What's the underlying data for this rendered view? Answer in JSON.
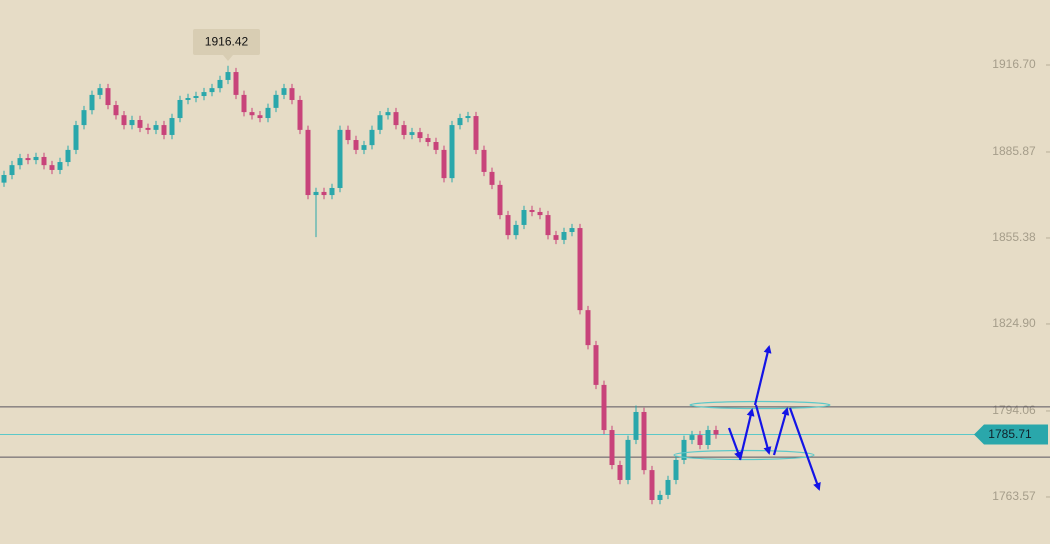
{
  "chart_data": {
    "type": "candlestick",
    "ylim": [
      1746.9,
      1939.74
    ],
    "yticks": [
      {
        "value": 1916.7,
        "label": "1916.70"
      },
      1885.87,
      1855.38,
      {
        "value": 1824.9,
        "label": "1824.90"
      },
      1794.06,
      1763.57
    ],
    "open": [
      1875.0,
      1877.7,
      1881.2,
      1883.7,
      1883.0,
      1884.1,
      1881.2,
      1879.5,
      1882.3,
      1886.6,
      1895.4,
      1900.7,
      1906.1,
      1908.5,
      1902.5,
      1898.9,
      1895.4,
      1897.2,
      1894.4,
      1893.7,
      1895.4,
      1891.9,
      1897.9,
      1904.3,
      1905.0,
      1905.7,
      1907.1,
      1908.5,
      1911.4,
      1914.2,
      1906.1,
      1900.0,
      1898.9,
      1897.9,
      1901.5,
      1906.1,
      1908.5,
      1904.3,
      1893.7,
      1870.6,
      1871.7,
      1870.6,
      1873.1,
      1893.7,
      1890.1,
      1886.6,
      1888.3,
      1893.7,
      1898.9,
      1900.0,
      1895.4,
      1891.9,
      1892.9,
      1890.8,
      1889.4,
      1886.6,
      1876.6,
      1895.4,
      1897.9,
      1898.6,
      1886.6,
      1878.8,
      1874.2,
      1863.5,
      1856.4,
      1860.0,
      1865.3,
      1864.6,
      1863.5,
      1856.4,
      1854.7,
      1857.5,
      1858.9,
      1829.8,
      1817.4,
      1803.3,
      1787.3,
      1774.9,
      1769.6,
      1783.8,
      1793.7,
      1773.1,
      1762.5,
      1764.3,
      1769.6,
      1776.7,
      1783.8,
      1785.5,
      1782.0,
      1787.3
    ],
    "high": [
      1879.2,
      1882.7,
      1885.2,
      1885.2,
      1885.6,
      1885.6,
      1882.7,
      1883.8,
      1888.1,
      1896.9,
      1902.2,
      1907.6,
      1910.0,
      1910.0,
      1904.0,
      1900.4,
      1898.7,
      1898.7,
      1895.9,
      1896.9,
      1896.9,
      1899.4,
      1905.8,
      1906.5,
      1907.2,
      1908.6,
      1910.0,
      1912.9,
      1916.42,
      1915.7,
      1907.6,
      1901.5,
      1900.4,
      1903.0,
      1907.6,
      1910.0,
      1910.0,
      1905.8,
      1895.2,
      1873.2,
      1873.2,
      1874.6,
      1895.2,
      1895.2,
      1891.6,
      1889.8,
      1895.2,
      1900.4,
      1901.5,
      1901.5,
      1896.9,
      1894.4,
      1894.4,
      1892.3,
      1890.9,
      1888.1,
      1896.9,
      1899.4,
      1900.1,
      1900.1,
      1888.1,
      1880.3,
      1875.7,
      1865.0,
      1861.5,
      1866.8,
      1866.8,
      1866.1,
      1865.0,
      1857.9,
      1859.0,
      1860.4,
      1860.4,
      1831.3,
      1818.9,
      1804.8,
      1788.8,
      1776.4,
      1785.3,
      1796.0,
      1795.2,
      1774.6,
      1765.8,
      1771.1,
      1778.2,
      1785.3,
      1787.0,
      1787.0,
      1788.8,
      1788.8
    ],
    "low": [
      1873.5,
      1876.2,
      1879.7,
      1881.5,
      1881.5,
      1879.7,
      1878.0,
      1878.0,
      1880.8,
      1885.1,
      1893.9,
      1899.2,
      1904.6,
      1901.0,
      1897.4,
      1893.9,
      1893.9,
      1892.9,
      1892.2,
      1892.2,
      1890.4,
      1890.4,
      1896.4,
      1902.8,
      1903.5,
      1904.2,
      1905.6,
      1907.0,
      1909.9,
      1904.6,
      1898.5,
      1897.4,
      1896.4,
      1896.4,
      1900.0,
      1904.6,
      1902.8,
      1892.2,
      1869.1,
      1855.7,
      1869.1,
      1869.1,
      1871.6,
      1888.6,
      1885.1,
      1885.1,
      1886.8,
      1892.2,
      1897.4,
      1893.9,
      1890.4,
      1890.4,
      1889.3,
      1887.9,
      1885.1,
      1875.1,
      1875.1,
      1893.9,
      1896.4,
      1885.1,
      1877.3,
      1872.7,
      1862.0,
      1854.9,
      1854.9,
      1858.5,
      1863.1,
      1862.0,
      1854.9,
      1853.2,
      1853.2,
      1856.0,
      1828.3,
      1815.9,
      1801.8,
      1785.8,
      1773.4,
      1768.1,
      1768.1,
      1782.3,
      1771.6,
      1761.0,
      1761.0,
      1762.8,
      1768.1,
      1775.2,
      1782.3,
      1780.5,
      1780.5,
      1784.2
    ],
    "close": [
      1877.7,
      1881.2,
      1883.7,
      1883.0,
      1884.1,
      1881.2,
      1879.5,
      1882.3,
      1886.6,
      1895.4,
      1900.7,
      1906.1,
      1908.5,
      1902.5,
      1898.9,
      1895.4,
      1897.2,
      1894.4,
      1893.7,
      1895.4,
      1891.9,
      1897.9,
      1904.3,
      1905.0,
      1905.7,
      1907.1,
      1908.5,
      1911.4,
      1914.2,
      1906.1,
      1900.0,
      1898.9,
      1897.9,
      1901.5,
      1906.1,
      1908.5,
      1904.3,
      1893.7,
      1870.6,
      1871.7,
      1870.6,
      1873.1,
      1893.7,
      1890.1,
      1886.6,
      1888.3,
      1893.7,
      1898.9,
      1900.0,
      1895.4,
      1891.9,
      1892.9,
      1890.8,
      1889.4,
      1886.6,
      1876.6,
      1895.4,
      1897.9,
      1898.6,
      1886.6,
      1878.8,
      1874.2,
      1863.5,
      1856.4,
      1860.0,
      1865.3,
      1864.6,
      1863.5,
      1856.4,
      1854.7,
      1857.5,
      1858.9,
      1829.8,
      1817.4,
      1803.3,
      1787.3,
      1774.9,
      1769.6,
      1783.8,
      1793.7,
      1773.1,
      1762.5,
      1764.3,
      1769.6,
      1776.7,
      1783.8,
      1785.5,
      1782.0,
      1787.3,
      1785.71
    ],
    "up_color": "#2aa7ab",
    "down_color": "#c8437a",
    "peak_label": 1916.42,
    "current_price": 1785.71,
    "hlines": [
      1795.5,
      1777.7
    ]
  }
}
